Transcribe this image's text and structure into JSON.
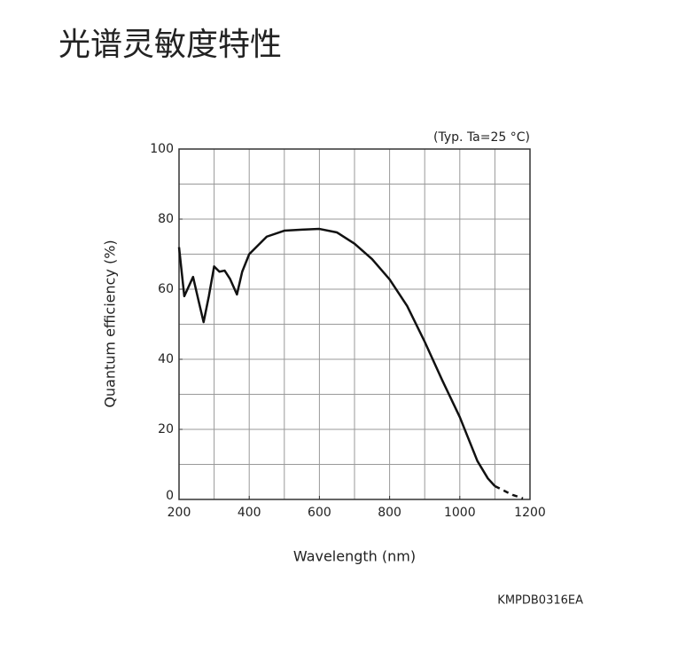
{
  "chart_data": {
    "type": "line",
    "title": "光谱灵敏度特性",
    "annotation": "(Typ. Ta=25 °C)",
    "x_label": "Wavelength (nm)",
    "y_label": "Quantum efficiency (%)",
    "footer": "KMPDB0316EA",
    "x": [
      200,
      215,
      240,
      255,
      270,
      285,
      300,
      315,
      330,
      345,
      365,
      380,
      400,
      450,
      500,
      550,
      600,
      650,
      700,
      750,
      800,
      850,
      900,
      950,
      1000,
      1050,
      1080,
      1100,
      1150,
      1180
    ],
    "series": [
      {
        "color": "#111111",
        "values": [
          72,
          58,
          63.5,
          57,
          50.6,
          58,
          66.5,
          65,
          65.3,
          63,
          58.5,
          65,
          70,
          75,
          76.7,
          77,
          77.2,
          76.2,
          73,
          68.6,
          62.8,
          55.2,
          45,
          34,
          23.5,
          11,
          6,
          3.8,
          null,
          null
        ]
      },
      {
        "color": "#111111",
        "dashed": true,
        "values": [
          null,
          null,
          null,
          null,
          null,
          null,
          null,
          null,
          null,
          null,
          null,
          null,
          null,
          null,
          null,
          null,
          null,
          null,
          null,
          null,
          null,
          null,
          null,
          null,
          null,
          null,
          null,
          3.8,
          1.3,
          0.3
        ]
      }
    ],
    "xlim": [
      200,
      1200
    ],
    "ylim": [
      0,
      100
    ],
    "xticks": [
      200,
      400,
      600,
      800,
      1000,
      1200
    ],
    "yticks": [
      0,
      20,
      40,
      60,
      80,
      100
    ],
    "xgrid": [
      300,
      400,
      500,
      600,
      700,
      800,
      900,
      1000,
      1100
    ],
    "ygrid": [
      10,
      20,
      30,
      40,
      50,
      60,
      70,
      80,
      90
    ],
    "grid": true
  }
}
